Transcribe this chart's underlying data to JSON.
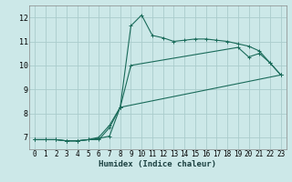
{
  "xlabel": "Humidex (Indice chaleur)",
  "bg_color": "#cce8e8",
  "grid_color": "#aacccc",
  "line_color": "#1a6b5a",
  "xlim": [
    -0.5,
    23.5
  ],
  "ylim": [
    6.5,
    12.5
  ],
  "xticks": [
    0,
    1,
    2,
    3,
    4,
    5,
    6,
    7,
    8,
    9,
    10,
    11,
    12,
    13,
    14,
    15,
    16,
    17,
    18,
    19,
    20,
    21,
    22,
    23
  ],
  "yticks": [
    7,
    8,
    9,
    10,
    11,
    12
  ],
  "line1_x": [
    0,
    1,
    2,
    3,
    4,
    5,
    6,
    7,
    8,
    9,
    10,
    11,
    12,
    13,
    14,
    15,
    16,
    17,
    18,
    19,
    20,
    21,
    22,
    23
  ],
  "line1_y": [
    6.9,
    6.9,
    6.9,
    6.85,
    6.85,
    6.9,
    6.95,
    7.05,
    8.25,
    11.65,
    12.1,
    11.25,
    11.15,
    11.0,
    11.05,
    11.1,
    11.1,
    11.05,
    11.0,
    10.9,
    10.8,
    10.6,
    10.1,
    9.6
  ],
  "line2_x": [
    0,
    1,
    2,
    3,
    4,
    5,
    6,
    7,
    8,
    23
  ],
  "line2_y": [
    6.9,
    6.9,
    6.9,
    6.85,
    6.85,
    6.9,
    6.9,
    7.4,
    8.25,
    9.6
  ],
  "line3_x": [
    0,
    1,
    2,
    3,
    4,
    5,
    6,
    7,
    8,
    9,
    19,
    20,
    21,
    22,
    23
  ],
  "line3_y": [
    6.9,
    6.9,
    6.9,
    6.85,
    6.85,
    6.9,
    7.0,
    7.5,
    8.25,
    10.0,
    10.75,
    10.35,
    10.5,
    10.1,
    9.6
  ],
  "tick_fontsize": 5.5,
  "xlabel_fontsize": 6.5
}
